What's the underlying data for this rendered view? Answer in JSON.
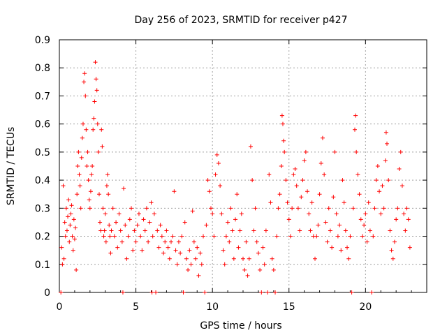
{
  "chart_data": {
    "type": "scatter",
    "title": "Day 256 of 2023, SRMTID for receiver p427",
    "xlabel": "GPS time / hours",
    "ylabel": "SRMTID / TECUs",
    "xlim": [
      0,
      24
    ],
    "ylim": [
      0,
      0.9
    ],
    "x_ticks": [
      0,
      5,
      10,
      15,
      20
    ],
    "x_tick_labels": [
      "0",
      "5",
      "10",
      "15",
      "20"
    ],
    "y_ticks": [
      0,
      0.1,
      0.2,
      0.3,
      0.4,
      0.5,
      0.6,
      0.7,
      0.8,
      0.9
    ],
    "y_tick_labels": [
      "0",
      "0.1",
      "0.2",
      "0.3",
      "0.4",
      "0.5",
      "0.6",
      "0.7",
      "0.8",
      "0.9"
    ],
    "grid": true,
    "marker": "+",
    "color": "#ff0000",
    "series": [
      {
        "name": "SRMTID",
        "points": [
          [
            0.1,
            0.0
          ],
          [
            0.15,
            0.16
          ],
          [
            0.2,
            0.1
          ],
          [
            0.25,
            0.38
          ],
          [
            0.3,
            0.12
          ],
          [
            0.35,
            0.25
          ],
          [
            0.4,
            0.2
          ],
          [
            0.45,
            0.3
          ],
          [
            0.5,
            0.22
          ],
          [
            0.55,
            0.27
          ],
          [
            0.6,
            0.33
          ],
          [
            0.65,
            0.18
          ],
          [
            0.7,
            0.24
          ],
          [
            0.75,
            0.28
          ],
          [
            0.8,
            0.31
          ],
          [
            0.85,
            0.2
          ],
          [
            0.9,
            0.15
          ],
          [
            0.95,
            0.26
          ],
          [
            1.0,
            0.19
          ],
          [
            1.05,
            0.23
          ],
          [
            1.1,
            0.08
          ],
          [
            1.15,
            0.35
          ],
          [
            1.2,
            0.45
          ],
          [
            1.25,
            0.5
          ],
          [
            1.3,
            0.42
          ],
          [
            1.35,
            0.38
          ],
          [
            1.4,
            0.3
          ],
          [
            1.45,
            0.48
          ],
          [
            1.5,
            0.55
          ],
          [
            1.55,
            0.6
          ],
          [
            1.6,
            0.75
          ],
          [
            1.65,
            0.78
          ],
          [
            1.7,
            0.7
          ],
          [
            1.75,
            0.58
          ],
          [
            1.8,
            0.45
          ],
          [
            1.85,
            0.5
          ],
          [
            1.9,
            0.4
          ],
          [
            1.95,
            0.33
          ],
          [
            2.0,
            0.3
          ],
          [
            2.05,
            0.36
          ],
          [
            2.1,
            0.42
          ],
          [
            2.15,
            0.45
          ],
          [
            2.2,
            0.58
          ],
          [
            2.25,
            0.62
          ],
          [
            2.3,
            0.68
          ],
          [
            2.35,
            0.82
          ],
          [
            2.4,
            0.76
          ],
          [
            2.45,
            0.72
          ],
          [
            2.5,
            0.6
          ],
          [
            2.55,
            0.5
          ],
          [
            2.6,
            0.35
          ],
          [
            2.65,
            0.25
          ],
          [
            2.7,
            0.22
          ],
          [
            2.75,
            0.58
          ],
          [
            2.8,
            0.52
          ],
          [
            2.85,
            0.3
          ],
          [
            2.9,
            0.2
          ],
          [
            2.95,
            0.22
          ],
          [
            3.0,
            0.28
          ],
          [
            3.05,
            0.18
          ],
          [
            3.1,
            0.38
          ],
          [
            3.15,
            0.42
          ],
          [
            3.2,
            0.35
          ],
          [
            3.25,
            0.24
          ],
          [
            3.3,
            0.2
          ],
          [
            3.35,
            0.14
          ],
          [
            3.4,
            0.22
          ],
          [
            3.5,
            0.3
          ],
          [
            3.6,
            0.2
          ],
          [
            3.7,
            0.25
          ],
          [
            3.8,
            0.16
          ],
          [
            3.9,
            0.28
          ],
          [
            4.0,
            0.22
          ],
          [
            4.1,
            0.18
          ],
          [
            4.15,
            0.0
          ],
          [
            4.2,
            0.37
          ],
          [
            4.3,
            0.24
          ],
          [
            4.4,
            0.12
          ],
          [
            4.5,
            0.2
          ],
          [
            4.6,
            0.26
          ],
          [
            4.7,
            0.3
          ],
          [
            4.8,
            0.15
          ],
          [
            4.9,
            0.22
          ],
          [
            5.0,
            0.18
          ],
          [
            5.1,
            0.24
          ],
          [
            5.2,
            0.28
          ],
          [
            5.3,
            0.2
          ],
          [
            5.4,
            0.15
          ],
          [
            5.5,
            0.26
          ],
          [
            5.6,
            0.22
          ],
          [
            5.7,
            0.3
          ],
          [
            5.8,
            0.18
          ],
          [
            5.9,
            0.25
          ],
          [
            6.0,
            0.32
          ],
          [
            6.05,
            0.0
          ],
          [
            6.1,
            0.2
          ],
          [
            6.2,
            0.28
          ],
          [
            6.3,
            0.0
          ],
          [
            6.4,
            0.22
          ],
          [
            6.5,
            0.16
          ],
          [
            6.6,
            0.24
          ],
          [
            6.7,
            0.2
          ],
          [
            6.8,
            0.14
          ],
          [
            6.9,
            0.18
          ],
          [
            7.0,
            0.22
          ],
          [
            7.1,
            0.16
          ],
          [
            7.2,
            0.12
          ],
          [
            7.3,
            0.18
          ],
          [
            7.4,
            0.2
          ],
          [
            7.5,
            0.36
          ],
          [
            7.6,
            0.15
          ],
          [
            7.7,
            0.1
          ],
          [
            7.8,
            0.18
          ],
          [
            7.9,
            0.14
          ],
          [
            8.0,
            0.2
          ],
          [
            8.1,
            0.0
          ],
          [
            8.2,
            0.25
          ],
          [
            8.3,
            0.12
          ],
          [
            8.4,
            0.08
          ],
          [
            8.5,
            0.15
          ],
          [
            8.6,
            0.1
          ],
          [
            8.7,
            0.29
          ],
          [
            8.8,
            0.18
          ],
          [
            8.9,
            0.12
          ],
          [
            9.0,
            0.16
          ],
          [
            9.1,
            0.06
          ],
          [
            9.2,
            0.14
          ],
          [
            9.3,
            0.1
          ],
          [
            9.4,
            0.2
          ],
          [
            9.5,
            0.0
          ],
          [
            9.6,
            0.24
          ],
          [
            9.7,
            0.4
          ],
          [
            9.8,
            0.36
          ],
          [
            9.9,
            0.3
          ],
          [
            10.0,
            0.28
          ],
          [
            10.1,
            0.2
          ],
          [
            10.2,
            0.42
          ],
          [
            10.3,
            0.49
          ],
          [
            10.4,
            0.46
          ],
          [
            10.5,
            0.38
          ],
          [
            10.6,
            0.28
          ],
          [
            10.7,
            0.15
          ],
          [
            10.8,
            0.1
          ],
          [
            10.9,
            0.2
          ],
          [
            11.0,
            0.25
          ],
          [
            11.1,
            0.18
          ],
          [
            11.2,
            0.3
          ],
          [
            11.3,
            0.22
          ],
          [
            11.4,
            0.12
          ],
          [
            11.5,
            0.26
          ],
          [
            11.6,
            0.35
          ],
          [
            11.7,
            0.16
          ],
          [
            11.8,
            0.22
          ],
          [
            11.9,
            0.28
          ],
          [
            12.0,
            0.12
          ],
          [
            12.1,
            0.08
          ],
          [
            12.2,
            0.18
          ],
          [
            12.3,
            0.06
          ],
          [
            12.4,
            0.12
          ],
          [
            12.5,
            0.52
          ],
          [
            12.6,
            0.4
          ],
          [
            12.7,
            0.22
          ],
          [
            12.8,
            0.3
          ],
          [
            12.9,
            0.18
          ],
          [
            13.0,
            0.14
          ],
          [
            13.1,
            0.08
          ],
          [
            13.2,
            0.0
          ],
          [
            13.3,
            0.16
          ],
          [
            13.4,
            0.1
          ],
          [
            13.5,
            0.22
          ],
          [
            13.6,
            0.0
          ],
          [
            13.7,
            0.42
          ],
          [
            13.8,
            0.32
          ],
          [
            13.9,
            0.12
          ],
          [
            14.0,
            0.08
          ],
          [
            14.1,
            0.0
          ],
          [
            14.2,
            0.2
          ],
          [
            14.3,
            0.3
          ],
          [
            14.4,
            0.35
          ],
          [
            14.5,
            0.45
          ],
          [
            14.55,
            0.63
          ],
          [
            14.6,
            0.6
          ],
          [
            14.65,
            0.54
          ],
          [
            14.7,
            0.5
          ],
          [
            14.8,
            0.4
          ],
          [
            14.9,
            0.32
          ],
          [
            15.0,
            0.26
          ],
          [
            15.1,
            0.2
          ],
          [
            15.2,
            0.3
          ],
          [
            15.3,
            0.42
          ],
          [
            15.4,
            0.44
          ],
          [
            15.5,
            0.38
          ],
          [
            15.6,
            0.3
          ],
          [
            15.7,
            0.22
          ],
          [
            15.8,
            0.34
          ],
          [
            15.9,
            0.4
          ],
          [
            16.0,
            0.47
          ],
          [
            16.1,
            0.5
          ],
          [
            16.2,
            0.36
          ],
          [
            16.3,
            0.28
          ],
          [
            16.4,
            0.22
          ],
          [
            16.5,
            0.32
          ],
          [
            16.6,
            0.2
          ],
          [
            16.7,
            0.12
          ],
          [
            16.8,
            0.2
          ],
          [
            16.9,
            0.24
          ],
          [
            17.0,
            0.35
          ],
          [
            17.1,
            0.46
          ],
          [
            17.2,
            0.55
          ],
          [
            17.3,
            0.42
          ],
          [
            17.4,
            0.25
          ],
          [
            17.5,
            0.18
          ],
          [
            17.6,
            0.3
          ],
          [
            17.7,
            0.22
          ],
          [
            17.8,
            0.16
          ],
          [
            17.9,
            0.34
          ],
          [
            18.0,
            0.5
          ],
          [
            18.1,
            0.28
          ],
          [
            18.2,
            0.2
          ],
          [
            18.3,
            0.24
          ],
          [
            18.4,
            0.15
          ],
          [
            18.5,
            0.4
          ],
          [
            18.6,
            0.32
          ],
          [
            18.7,
            0.22
          ],
          [
            18.8,
            0.16
          ],
          [
            18.9,
            0.12
          ],
          [
            19.0,
            0.2
          ],
          [
            19.1,
            0.0
          ],
          [
            19.2,
            0.3
          ],
          [
            19.3,
            0.58
          ],
          [
            19.35,
            0.63
          ],
          [
            19.4,
            0.5
          ],
          [
            19.5,
            0.42
          ],
          [
            19.6,
            0.35
          ],
          [
            19.7,
            0.26
          ],
          [
            19.8,
            0.2
          ],
          [
            19.9,
            0.24
          ],
          [
            20.0,
            0.28
          ],
          [
            20.1,
            0.18
          ],
          [
            20.2,
            0.32
          ],
          [
            20.3,
            0.22
          ],
          [
            20.4,
            0.0
          ],
          [
            20.5,
            0.2
          ],
          [
            20.6,
            0.3
          ],
          [
            20.7,
            0.4
          ],
          [
            20.8,
            0.45
          ],
          [
            20.9,
            0.36
          ],
          [
            21.0,
            0.28
          ],
          [
            21.1,
            0.38
          ],
          [
            21.2,
            0.3
          ],
          [
            21.3,
            0.47
          ],
          [
            21.35,
            0.57
          ],
          [
            21.4,
            0.53
          ],
          [
            21.5,
            0.4
          ],
          [
            21.6,
            0.22
          ],
          [
            21.7,
            0.15
          ],
          [
            21.8,
            0.12
          ],
          [
            21.9,
            0.18
          ],
          [
            22.0,
            0.26
          ],
          [
            22.1,
            0.3
          ],
          [
            22.2,
            0.44
          ],
          [
            22.3,
            0.5
          ],
          [
            22.4,
            0.38
          ],
          [
            22.5,
            0.28
          ],
          [
            22.6,
            0.22
          ],
          [
            22.7,
            0.3
          ],
          [
            22.8,
            0.26
          ],
          [
            22.9,
            0.16
          ]
        ]
      }
    ]
  }
}
